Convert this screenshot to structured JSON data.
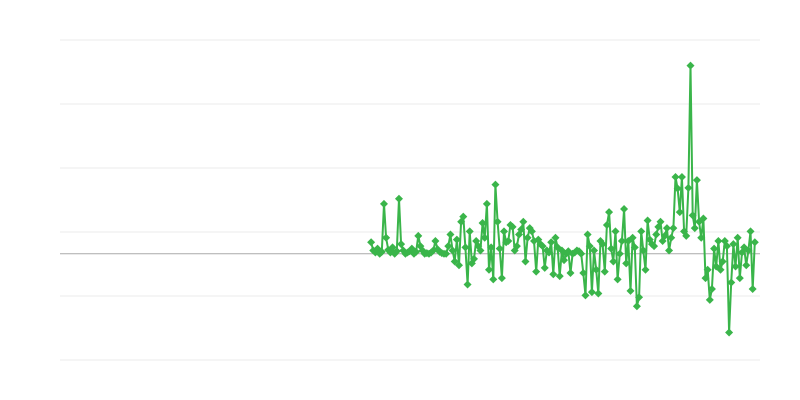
{
  "chart_data": {
    "type": "line",
    "title": "",
    "xlabel": "",
    "ylabel": "",
    "grid": true,
    "legend": "none",
    "marker": "diamond",
    "color": "#3ab54a",
    "xlim": [
      0,
      270
    ],
    "ylim": [
      -1.66,
      3.34
    ],
    "gridlines": [
      -1.66,
      -0.66,
      0.34,
      1.34,
      2.34,
      3.34
    ],
    "zero_line": 0,
    "x_start": 120,
    "values": [
      0.18,
      0.05,
      0.02,
      0.08,
      0.0,
      0.03,
      0.78,
      0.25,
      0.06,
      0.02,
      0.1,
      0.0,
      0.04,
      0.86,
      0.15,
      0.05,
      0.0,
      0.02,
      0.04,
      0.08,
      0.0,
      0.03,
      0.28,
      0.12,
      0.05,
      0.0,
      0.01,
      0.0,
      0.02,
      0.05,
      0.2,
      0.07,
      0.03,
      0.01,
      0.0,
      0.0,
      0.12,
      0.3,
      0.05,
      -0.12,
      0.22,
      -0.18,
      0.5,
      0.58,
      0.1,
      -0.48,
      0.35,
      -0.15,
      -0.08,
      0.2,
      0.12,
      0.05,
      0.48,
      0.25,
      0.78,
      -0.25,
      0.1,
      -0.4,
      1.08,
      0.5,
      0.08,
      -0.38,
      0.35,
      0.18,
      0.2,
      0.45,
      0.42,
      0.05,
      0.12,
      0.3,
      0.38,
      0.5,
      -0.12,
      0.25,
      0.4,
      0.35,
      0.2,
      -0.28,
      0.22,
      0.15,
      0.12,
      -0.22,
      0.05,
      0.02,
      0.18,
      -0.32,
      0.25,
      0.1,
      -0.35,
      0.05,
      -0.1,
      0.0,
      0.04,
      -0.3,
      0.0,
      0.02,
      0.05,
      0.04,
      0.0,
      -0.3,
      -0.65,
      0.3,
      0.12,
      -0.6,
      0.05,
      -0.25,
      -0.62,
      0.2,
      0.15,
      -0.28,
      0.45,
      0.65,
      0.08,
      -0.12,
      0.35,
      -0.4,
      0.0,
      0.2,
      0.7,
      -0.15,
      0.2,
      -0.58,
      0.25,
      0.1,
      -0.82,
      -0.68,
      0.35,
      0.05,
      -0.25,
      0.52,
      0.22,
      0.15,
      0.12,
      0.3,
      0.42,
      0.5,
      0.2,
      0.28,
      0.4,
      0.05,
      0.25,
      0.4,
      1.2,
      1.02,
      0.65,
      1.2,
      0.35,
      0.28,
      1.03,
      2.94,
      0.6,
      0.4,
      1.15,
      0.5,
      0.25,
      0.55,
      -0.38,
      -0.25,
      -0.72,
      -0.55,
      0.08,
      -0.2,
      0.2,
      -0.25,
      -0.12,
      0.2,
      0.12,
      -1.23,
      -0.45,
      0.15,
      -0.2,
      0.25,
      -0.38,
      0.02,
      0.1,
      -0.18,
      0.05,
      0.35,
      -0.55,
      0.18
    ]
  }
}
